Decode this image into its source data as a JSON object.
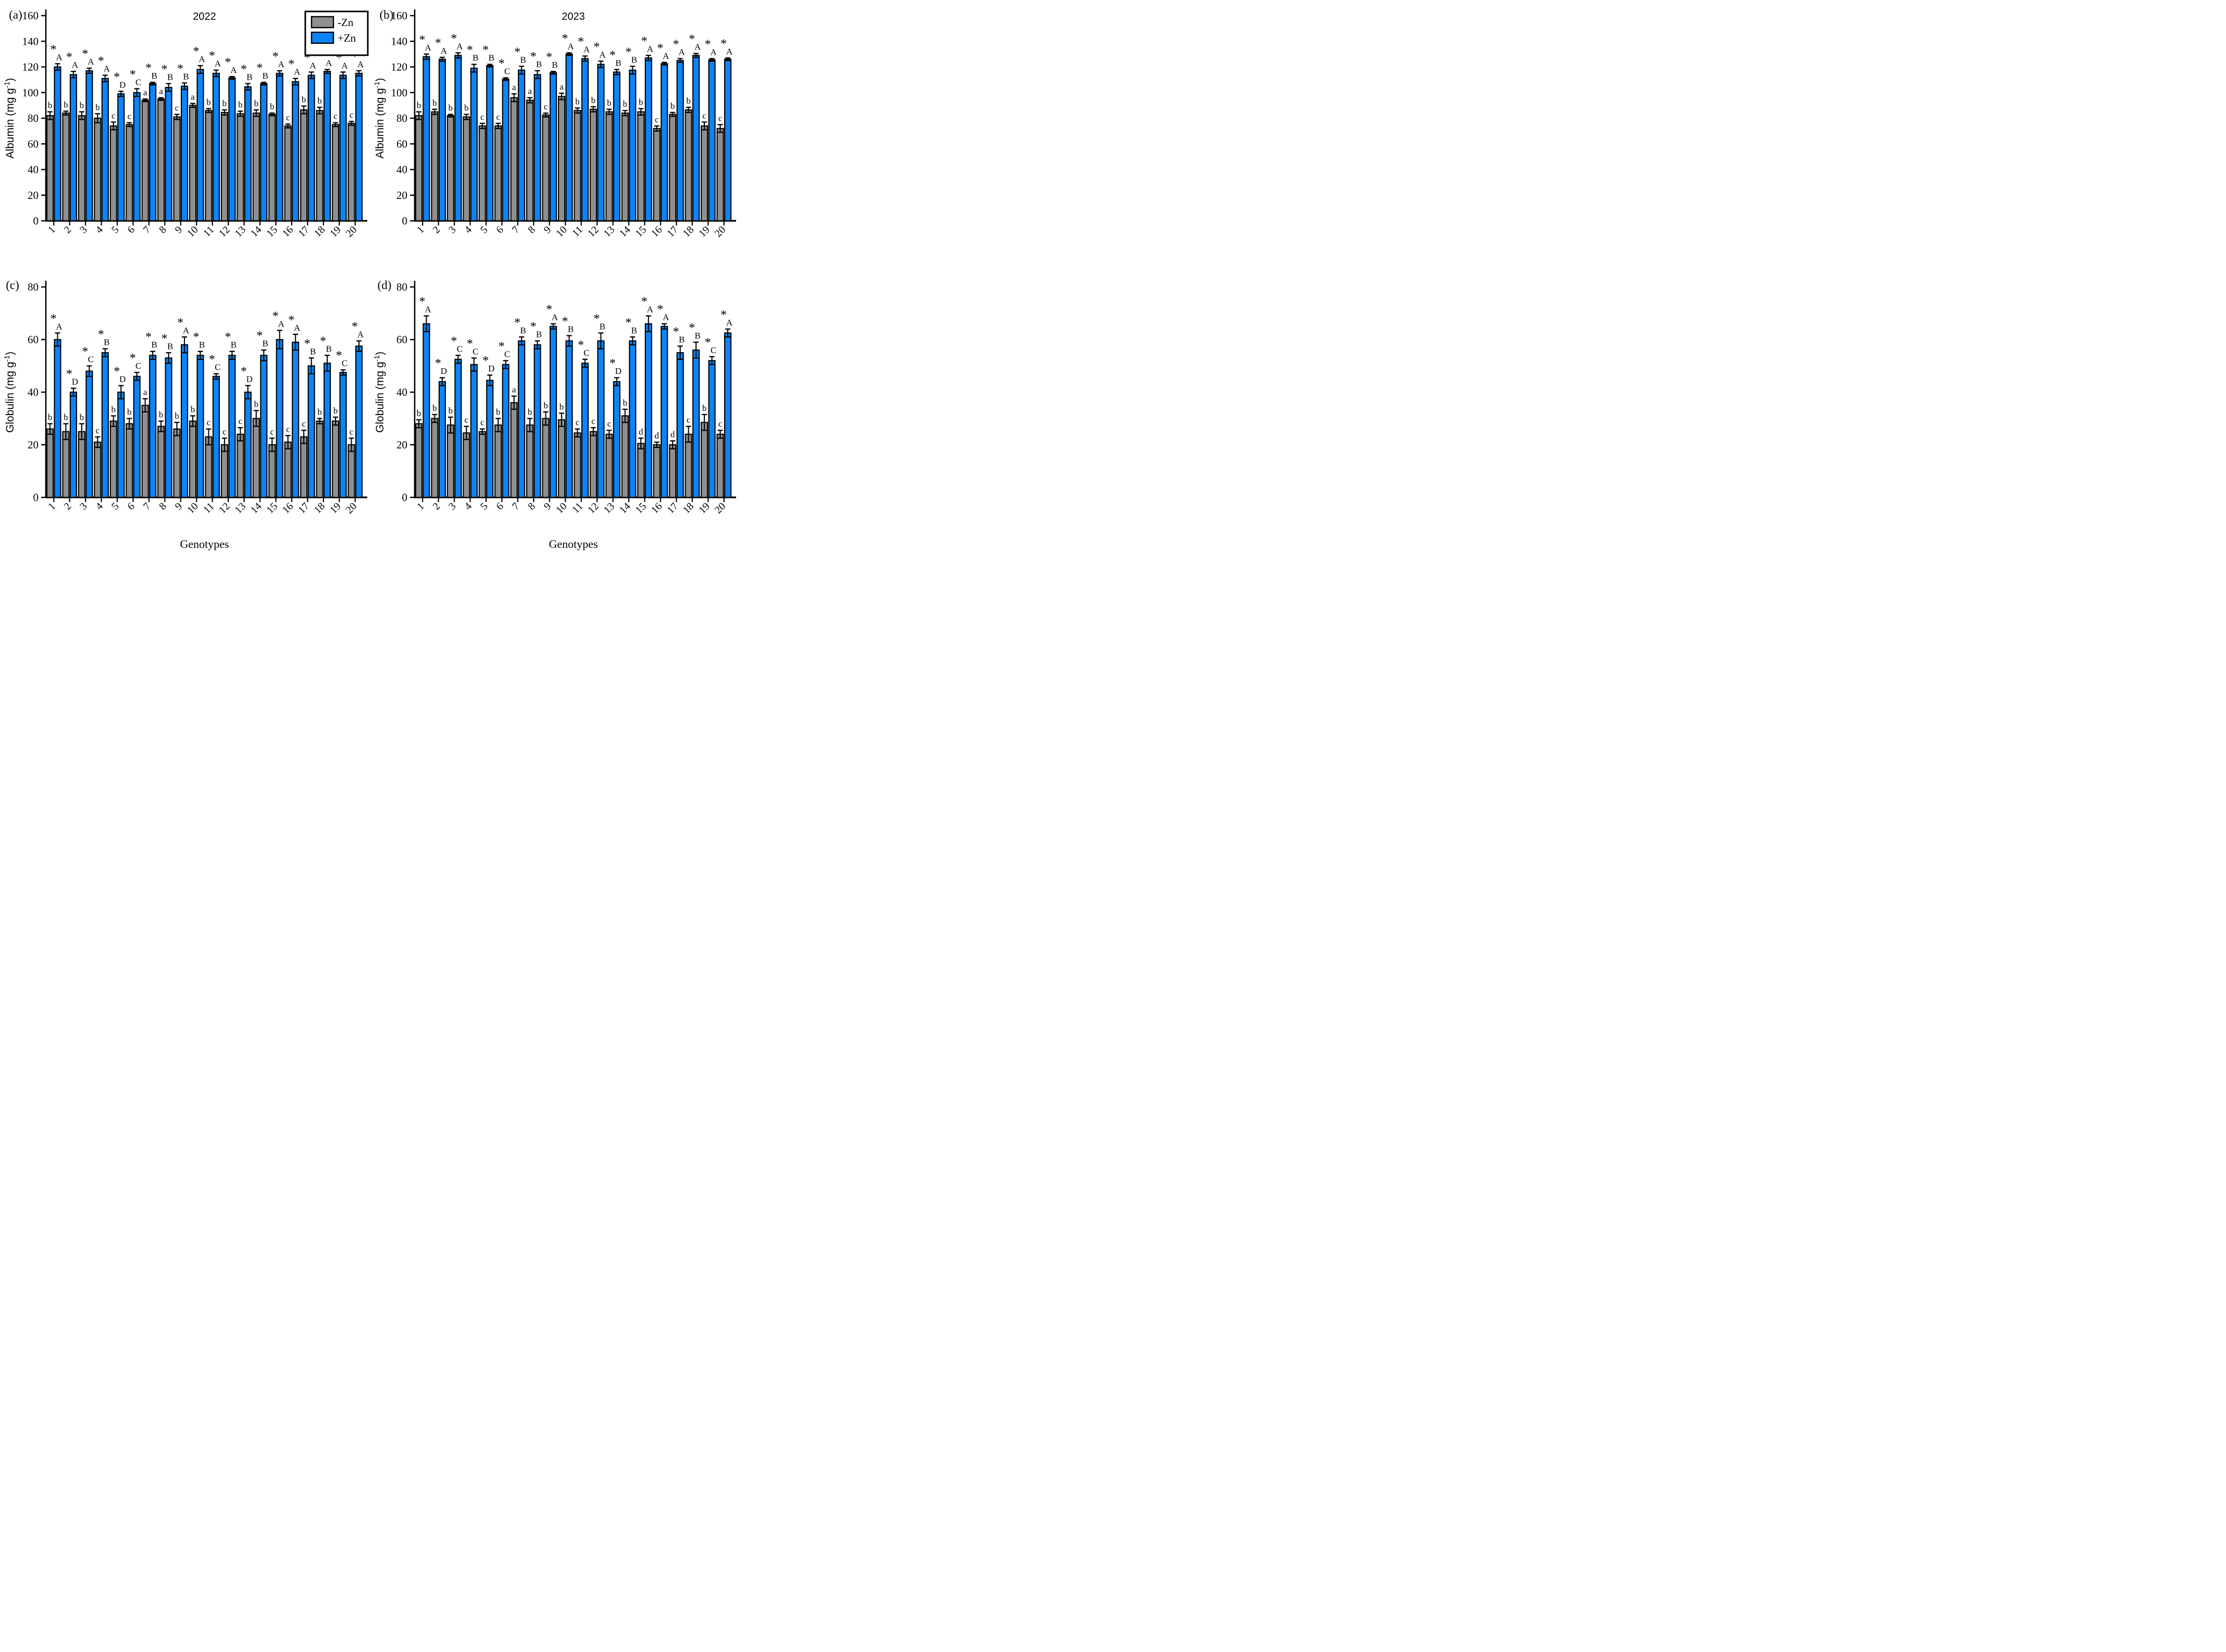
{
  "figure": {
    "background": "#ffffff",
    "bar_stroke": "#000000",
    "legend": {
      "items": [
        {
          "label": "-Zn",
          "color": "#8f8f8f"
        },
        {
          "label": "+Zn",
          "color": "#0b84f7"
        }
      ]
    },
    "xlabel": "Genotypes"
  },
  "chart_data": [
    {
      "type": "bar",
      "panel_tag": "(a)",
      "title": "2022",
      "ylabel": {
        "pre": "Albumin (mg g",
        "sup": "-1",
        "post": ")"
      },
      "ylim": [
        0,
        160
      ],
      "ytick_step": 20,
      "grid": false,
      "legend_position": "top-right",
      "show_legend": true,
      "categories": [
        "1",
        "2",
        "3",
        "4",
        "5",
        "6",
        "7",
        "8",
        "9",
        "10",
        "11",
        "12",
        "13",
        "14",
        "15",
        "16",
        "17",
        "18",
        "19",
        "20"
      ],
      "series": [
        {
          "name": "-Zn",
          "color": "#8f8f8f",
          "values": [
            82,
            84,
            82,
            80,
            74,
            75,
            94,
            95,
            81,
            90,
            86,
            84.5,
            83.5,
            84,
            83,
            74,
            86.5,
            86,
            75,
            76
          ],
          "errors": [
            3,
            1.5,
            3,
            3.5,
            3,
            1.5,
            1,
            1,
            2,
            1.5,
            1.5,
            2,
            2,
            2.5,
            1,
            1.5,
            3,
            2.5,
            1.5,
            1.5
          ],
          "letters": [
            "b",
            "b",
            "b",
            "b",
            "c",
            "c",
            "a",
            "a",
            "c",
            "a",
            "b",
            "b",
            "b",
            "b",
            "b",
            "c",
            "b",
            "b",
            "c",
            "c"
          ]
        },
        {
          "name": "+Zn",
          "color": "#0b84f7",
          "values": [
            120,
            114,
            117,
            111,
            99,
            100,
            107,
            104,
            105,
            118,
            115,
            111.5,
            104.5,
            107,
            115,
            108.5,
            113.5,
            116.5,
            113.5,
            115
          ],
          "errors": [
            2.5,
            2.5,
            2,
            2.5,
            2,
            3,
            1,
            3,
            2.5,
            3,
            2.5,
            1,
            2.5,
            1,
            2,
            2.5,
            2.5,
            1.5,
            2.5,
            2
          ],
          "letters": [
            "*A",
            "*A",
            "*A",
            "*A",
            "*D",
            "*C",
            "*B",
            "*B",
            "*B",
            "*A",
            "*A",
            "*A",
            "*B",
            "*B",
            "*A",
            "*A",
            "*A",
            "*A",
            "*A",
            "*A"
          ]
        }
      ]
    },
    {
      "type": "bar",
      "panel_tag": "(b)",
      "title": "2023",
      "ylabel": {
        "pre": "Albumin (mg g",
        "sup": "-1",
        "post": ")"
      },
      "ylim": [
        0,
        160
      ],
      "ytick_step": 20,
      "grid": false,
      "show_legend": false,
      "categories": [
        "1",
        "2",
        "3",
        "4",
        "5",
        "6",
        "7",
        "8",
        "9",
        "10",
        "11",
        "12",
        "13",
        "14",
        "15",
        "16",
        "17",
        "18",
        "19",
        "20"
      ],
      "series": [
        {
          "name": "-Zn",
          "color": "#8f8f8f",
          "values": [
            82,
            85,
            82,
            81,
            74,
            74,
            96,
            94,
            82.5,
            97,
            86,
            87,
            85,
            84,
            85,
            72,
            83,
            86.5,
            74,
            72
          ],
          "errors": [
            3,
            2,
            1,
            2,
            2,
            2,
            3,
            2,
            1.5,
            2.5,
            2,
            2,
            2,
            2,
            2.5,
            2,
            1.5,
            2,
            3,
            3
          ],
          "letters": [
            "b",
            "b",
            "b",
            "b",
            "c",
            "c",
            "a",
            "a",
            "c",
            "a",
            "b",
            "b",
            "b",
            "b",
            "b",
            "c",
            "b",
            "b",
            "c",
            "c"
          ]
        },
        {
          "name": "+Zn",
          "color": "#0b84f7",
          "values": [
            128,
            126,
            129,
            119,
            121,
            110.5,
            117.5,
            114,
            115.5,
            130,
            126.5,
            122,
            116,
            117.5,
            127,
            122.5,
            125,
            129,
            125.5,
            126
          ],
          "errors": [
            2,
            1.5,
            2,
            3,
            1,
            1,
            3,
            3,
            1,
            1,
            2,
            2.5,
            2,
            3,
            2,
            1,
            1.5,
            1.5,
            1,
            1
          ],
          "letters": [
            "*A",
            "*A",
            "*A",
            "*B",
            "*B",
            "*C",
            "*B",
            "*B",
            "*B",
            "*A",
            "*A",
            "*A",
            "*B",
            "*B",
            "*A",
            "*A",
            "*A",
            "*A",
            "*A",
            "*A"
          ]
        }
      ]
    },
    {
      "type": "bar",
      "panel_tag": "(c)",
      "title": "",
      "ylabel": {
        "pre": "Globulin (mg g",
        "sup": "-1",
        "post": ")"
      },
      "xlabel": "Genotypes",
      "ylim": [
        0,
        80
      ],
      "ytick_step": 20,
      "grid": false,
      "show_legend": false,
      "categories": [
        "1",
        "2",
        "3",
        "4",
        "5",
        "6",
        "7",
        "8",
        "9",
        "10",
        "11",
        "12",
        "13",
        "14",
        "15",
        "16",
        "17",
        "18",
        "19",
        "20"
      ],
      "series": [
        {
          "name": "-Zn",
          "color": "#8f8f8f",
          "values": [
            26,
            25,
            25,
            21,
            29,
            28,
            35,
            27,
            26,
            29,
            23,
            20,
            24,
            30,
            20,
            21,
            23,
            29,
            29,
            20
          ],
          "errors": [
            2,
            3,
            3,
            2,
            2,
            2,
            2.5,
            2,
            2.5,
            2,
            3,
            2.5,
            2.5,
            3,
            2.5,
            2.5,
            2.5,
            1,
            1.5,
            2.5
          ],
          "letters": [
            "b",
            "b",
            "b",
            "c",
            "b",
            "b",
            "a",
            "b",
            "b",
            "b",
            "c",
            "c",
            "c",
            "b",
            "c",
            "c",
            "c",
            "b",
            "b",
            "c"
          ]
        },
        {
          "name": "+Zn",
          "color": "#0b84f7",
          "values": [
            60,
            40,
            48,
            55,
            40,
            46,
            54,
            53,
            58,
            54,
            46,
            54,
            40,
            54,
            60,
            59,
            50,
            51,
            47.5,
            57.5
          ],
          "errors": [
            2.5,
            1.5,
            2,
            1.5,
            2.5,
            1.5,
            1.5,
            2,
            3,
            1.5,
            1,
            1.5,
            2.5,
            2,
            3.5,
            3,
            3,
            3,
            1,
            2
          ],
          "letters": [
            "*A",
            "*D",
            "*C",
            "*B",
            "*D",
            "*C",
            "*B",
            "*B",
            "*A",
            "*B",
            "*C",
            "*B",
            "*D",
            "*B",
            "*A",
            "*A",
            "*B",
            "*B",
            "*C",
            "*A"
          ]
        }
      ]
    },
    {
      "type": "bar",
      "panel_tag": "(d)",
      "title": "",
      "ylabel": {
        "pre": "Globulin (mg g",
        "sup": "-1",
        "post": ")"
      },
      "xlabel": "Genotypes",
      "ylim": [
        0,
        80
      ],
      "ytick_step": 20,
      "grid": false,
      "show_legend": false,
      "categories": [
        "1",
        "2",
        "3",
        "4",
        "5",
        "6",
        "7",
        "8",
        "9",
        "10",
        "11",
        "12",
        "13",
        "14",
        "15",
        "16",
        "17",
        "18",
        "19",
        "20"
      ],
      "series": [
        {
          "name": "-Zn",
          "color": "#8f8f8f",
          "values": [
            28,
            30,
            27.5,
            24.5,
            25,
            27.5,
            36,
            27.5,
            30,
            29.5,
            24.5,
            25,
            24,
            31,
            20.5,
            20,
            20,
            24,
            28.5,
            24
          ],
          "errors": [
            1.5,
            1.5,
            3,
            2.5,
            1,
            2.5,
            2.5,
            2.5,
            2.5,
            2.5,
            1.5,
            1.5,
            1.5,
            2.5,
            2,
            1,
            1.5,
            3,
            3,
            1.5
          ],
          "letters": [
            "b",
            "b",
            "b",
            "c",
            "c",
            "b",
            "a",
            "b",
            "b",
            "b",
            "c",
            "c",
            "c",
            "b",
            "d",
            "d",
            "d",
            "c",
            "b",
            "c"
          ]
        },
        {
          "name": "+Zn",
          "color": "#0b84f7",
          "values": [
            66,
            44,
            52.5,
            50.5,
            44.5,
            50.5,
            59.5,
            58,
            65,
            59.5,
            51,
            59.5,
            44,
            59.5,
            66,
            65,
            55,
            56,
            52,
            62.5
          ],
          "errors": [
            3,
            1.5,
            1.5,
            2.5,
            2,
            1.5,
            1.5,
            1.5,
            1,
            2,
            1.5,
            3,
            1.5,
            1.5,
            3,
            1,
            2.5,
            3,
            1.5,
            1.5
          ],
          "letters": [
            "*A",
            "*D",
            "*C",
            "*C",
            "*D",
            "*C",
            "*B",
            "*B",
            "*A",
            "*B",
            "*C",
            "*B",
            "*D",
            "*B",
            "*A",
            "*A",
            "*B",
            "*B",
            "*C",
            "*A"
          ]
        }
      ]
    }
  ]
}
